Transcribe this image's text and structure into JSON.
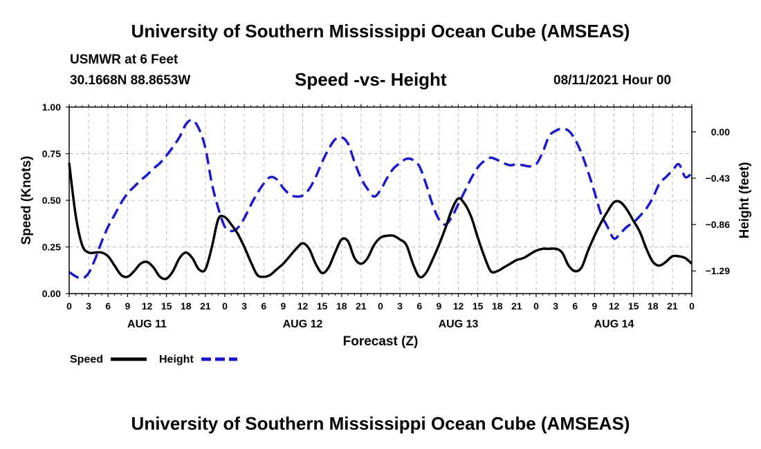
{
  "header": {
    "title": "University of Southern Mississippi Ocean Cube (AMSEAS)",
    "station": "USMWR at 6 Feet",
    "coords": "30.1668N  88.8653W",
    "chart_title": "Speed -vs- Height",
    "date": "08/11/2021 Hour 00"
  },
  "footer": {
    "title": "University of Southern Mississippi Ocean Cube (AMSEAS)"
  },
  "chart_data": {
    "type": "line",
    "title": "Speed -vs- Height",
    "xlabel": "Forecast (Z)",
    "ylabel": "Speed (Knots)",
    "y2label": "Height (feet)",
    "xlim": [
      0,
      96
    ],
    "ylim": [
      0,
      1.0
    ],
    "y2lim": [
      -1.5,
      0.23
    ],
    "grid": true,
    "legend": "bottom-left",
    "x_tick_hours": [
      0,
      3,
      6,
      9,
      12,
      15,
      18,
      21,
      24,
      27,
      30,
      33,
      36,
      39,
      42,
      45,
      48,
      51,
      54,
      57,
      60,
      63,
      66,
      69,
      72,
      75,
      78,
      81,
      84,
      87,
      90,
      93,
      96
    ],
    "x_tick_labels": [
      "0",
      "3",
      "6",
      "9",
      "12",
      "15",
      "18",
      "21",
      "0",
      "3",
      "6",
      "9",
      "12",
      "15",
      "18",
      "21",
      "0",
      "3",
      "6",
      "9",
      "12",
      "15",
      "18",
      "21",
      "0",
      "3",
      "6",
      "9",
      "12",
      "15",
      "18",
      "21",
      "0"
    ],
    "day_labels": [
      {
        "label": "AUG 11",
        "hour": 12
      },
      {
        "label": "AUG 12",
        "hour": 36
      },
      {
        "label": "AUG 13",
        "hour": 60
      },
      {
        "label": "AUG 14",
        "hour": 84
      }
    ],
    "y_ticks": [
      0.0,
      0.25,
      0.5,
      0.75,
      1.0
    ],
    "y_tick_labels": [
      "0.00",
      "0.25",
      "0.50",
      "0.75",
      "1.00"
    ],
    "y2_ticks": [
      0.0,
      -0.43,
      -0.86,
      -1.29
    ],
    "y2_tick_labels": [
      "0.00",
      "−0.43",
      "−0.86",
      "−1.29"
    ],
    "series": [
      {
        "name": "Speed",
        "axis": "left",
        "color": "#000000",
        "dash": "solid",
        "x": [
          0,
          1,
          2,
          3,
          4,
          5,
          6,
          7,
          8,
          9,
          10,
          11,
          12,
          13,
          14,
          15,
          16,
          17,
          18,
          19,
          20,
          21,
          22,
          23,
          24,
          25,
          26,
          27,
          28,
          29,
          30,
          31,
          32,
          33,
          34,
          35,
          36,
          37,
          38,
          39,
          40,
          41,
          42,
          43,
          44,
          45,
          46,
          47,
          48,
          49,
          50,
          51,
          52,
          53,
          54,
          55,
          56,
          57,
          58,
          59,
          60,
          61,
          62,
          63,
          64,
          65,
          66,
          67,
          68,
          69,
          70,
          71,
          72,
          73,
          74,
          75,
          76,
          77,
          78,
          79,
          80,
          81,
          82,
          83,
          84,
          85,
          86,
          87,
          88,
          89,
          90,
          91,
          92,
          93,
          94,
          95,
          96
        ],
        "values": [
          0.7,
          0.42,
          0.26,
          0.22,
          0.22,
          0.22,
          0.2,
          0.15,
          0.1,
          0.09,
          0.12,
          0.16,
          0.17,
          0.14,
          0.09,
          0.08,
          0.12,
          0.19,
          0.22,
          0.19,
          0.13,
          0.13,
          0.25,
          0.4,
          0.41,
          0.37,
          0.32,
          0.25,
          0.17,
          0.1,
          0.09,
          0.1,
          0.13,
          0.16,
          0.2,
          0.24,
          0.27,
          0.24,
          0.16,
          0.11,
          0.14,
          0.22,
          0.29,
          0.28,
          0.19,
          0.16,
          0.19,
          0.26,
          0.3,
          0.31,
          0.31,
          0.29,
          0.26,
          0.16,
          0.09,
          0.11,
          0.18,
          0.26,
          0.35,
          0.45,
          0.51,
          0.48,
          0.41,
          0.3,
          0.2,
          0.12,
          0.12,
          0.14,
          0.16,
          0.18,
          0.19,
          0.21,
          0.23,
          0.24,
          0.24,
          0.24,
          0.22,
          0.15,
          0.12,
          0.14,
          0.23,
          0.31,
          0.38,
          0.44,
          0.49,
          0.49,
          0.45,
          0.39,
          0.33,
          0.24,
          0.17,
          0.15,
          0.17,
          0.2,
          0.2,
          0.19,
          0.16
        ]
      },
      {
        "name": "Height",
        "axis": "right",
        "color": "#1a1acc",
        "dash": "dashed",
        "x": [
          0,
          1,
          2,
          3,
          4,
          5,
          6,
          7,
          8,
          9,
          10,
          11,
          12,
          13,
          14,
          15,
          16,
          17,
          18,
          19,
          20,
          21,
          22,
          23,
          24,
          25,
          26,
          27,
          28,
          29,
          30,
          31,
          32,
          33,
          34,
          35,
          36,
          37,
          38,
          39,
          40,
          41,
          42,
          43,
          44,
          45,
          46,
          47,
          48,
          49,
          50,
          51,
          52,
          53,
          54,
          55,
          56,
          57,
          58,
          59,
          60,
          61,
          62,
          63,
          64,
          65,
          66,
          67,
          68,
          69,
          70,
          71,
          72,
          73,
          74,
          75,
          76,
          77,
          78,
          79,
          80,
          81,
          82,
          83,
          84,
          85,
          86,
          87,
          88,
          89,
          90,
          91,
          92,
          93,
          94,
          95,
          96
        ],
        "values": [
          -1.3,
          -1.34,
          -1.36,
          -1.31,
          -1.18,
          -1.02,
          -0.88,
          -0.77,
          -0.66,
          -0.57,
          -0.51,
          -0.45,
          -0.4,
          -0.34,
          -0.29,
          -0.22,
          -0.14,
          -0.05,
          0.07,
          0.11,
          0.03,
          -0.15,
          -0.48,
          -0.71,
          -0.88,
          -0.92,
          -0.89,
          -0.8,
          -0.68,
          -0.57,
          -0.48,
          -0.42,
          -0.44,
          -0.52,
          -0.58,
          -0.6,
          -0.59,
          -0.53,
          -0.42,
          -0.28,
          -0.16,
          -0.07,
          -0.05,
          -0.11,
          -0.28,
          -0.43,
          -0.53,
          -0.6,
          -0.54,
          -0.43,
          -0.34,
          -0.29,
          -0.25,
          -0.26,
          -0.32,
          -0.48,
          -0.67,
          -0.81,
          -0.86,
          -0.79,
          -0.67,
          -0.55,
          -0.43,
          -0.33,
          -0.27,
          -0.24,
          -0.26,
          -0.29,
          -0.31,
          -0.3,
          -0.31,
          -0.32,
          -0.3,
          -0.19,
          -0.04,
          0.01,
          0.03,
          0.01,
          -0.07,
          -0.2,
          -0.37,
          -0.56,
          -0.76,
          -0.88,
          -0.99,
          -0.94,
          -0.88,
          -0.84,
          -0.78,
          -0.71,
          -0.61,
          -0.48,
          -0.42,
          -0.36,
          -0.3,
          -0.42,
          -0.38
        ]
      }
    ]
  }
}
